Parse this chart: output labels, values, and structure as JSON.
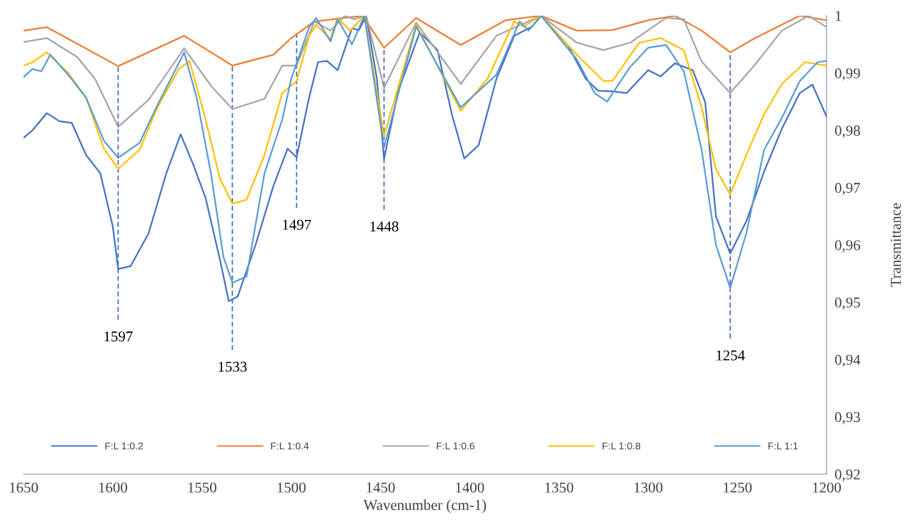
{
  "chart_data": {
    "type": "line",
    "xlabel": "Wavenumber (cm-1)",
    "ylabel": "Transmittance",
    "xlim": [
      1650,
      1200
    ],
    "xticks": [
      1650,
      1600,
      1550,
      1500,
      1450,
      1400,
      1350,
      1300,
      1250,
      1200
    ],
    "ylim": [
      0.92,
      1
    ],
    "yticks": [
      {
        "value": 0.92,
        "label": "0,92"
      },
      {
        "value": 0.93,
        "label": "0,93"
      },
      {
        "value": 0.94,
        "label": "0,94"
      },
      {
        "value": 0.95,
        "label": "0,95"
      },
      {
        "value": 0.96,
        "label": "0,96"
      },
      {
        "value": 0.97,
        "label": "0,97"
      },
      {
        "value": 0.98,
        "label": "0,98"
      },
      {
        "value": 0.99,
        "label": "0,99"
      },
      1
    ],
    "grid": false,
    "legend": "bottom",
    "marker": "none",
    "line_style": "solid",
    "annotations": [
      {
        "text": "1597",
        "x": 1597,
        "y": 0.9912
      },
      {
        "text": "1533",
        "x": 1533,
        "y": 0.9913
      },
      {
        "text": "1497",
        "x": 1497,
        "y": 0.9968
      },
      {
        "text": "1448",
        "x": 1448,
        "y": 0.9944
      },
      {
        "text": "1254",
        "x": 1254,
        "y": 0.9936
      }
    ],
    "series": [
      {
        "name": "F:L 1:0.2",
        "color": "#4472c4",
        "x": [
          1650,
          1645,
          1637,
          1630,
          1623,
          1615,
          1607,
          1600,
          1597,
          1590,
          1580,
          1570,
          1562,
          1555,
          1548,
          1540,
          1535,
          1530,
          1520,
          1510,
          1502,
          1497,
          1490,
          1485,
          1480,
          1474,
          1466,
          1462,
          1458,
          1452,
          1448,
          1440,
          1428,
          1418,
          1410,
          1403,
          1395,
          1385,
          1375,
          1365,
          1360,
          1345,
          1335,
          1328,
          1320,
          1312,
          1300,
          1293,
          1285,
          1275,
          1268,
          1262,
          1254,
          1245,
          1235,
          1225,
          1215,
          1208,
          1200
        ],
        "values": [
          0.9787,
          0.98,
          0.983,
          0.9816,
          0.9813,
          0.9757,
          0.9725,
          0.9632,
          0.9558,
          0.9563,
          0.962,
          0.9725,
          0.9793,
          0.9741,
          0.9682,
          0.9575,
          0.9502,
          0.951,
          0.96,
          0.9703,
          0.9768,
          0.9753,
          0.9857,
          0.9919,
          0.9921,
          0.9905,
          0.9978,
          0.9975,
          1.0,
          0.989,
          0.975,
          0.9869,
          0.9971,
          0.994,
          0.9828,
          0.9751,
          0.9774,
          0.989,
          0.9965,
          0.9981,
          1.0,
          0.9949,
          0.989,
          0.9869,
          0.9868,
          0.9865,
          0.9905,
          0.9894,
          0.9917,
          0.9905,
          0.9849,
          0.965,
          0.9585,
          0.9641,
          0.9728,
          0.9803,
          0.9865,
          0.988,
          0.9824
        ]
      },
      {
        "name": "F:L 1:0.4",
        "color": "#ed7d31",
        "x": [
          1650,
          1637,
          1597,
          1560,
          1533,
          1510,
          1500,
          1487,
          1460,
          1448,
          1430,
          1405,
          1380,
          1360,
          1340,
          1320,
          1300,
          1285,
          1270,
          1254,
          1240,
          1215,
          1200
        ],
        "values": [
          0.9974,
          0.998,
          0.9912,
          0.9965,
          0.9913,
          0.9932,
          0.9961,
          0.999,
          1.0,
          0.9944,
          0.9996,
          0.9949,
          0.9992,
          1.0,
          0.9974,
          0.9975,
          0.9992,
          1.0,
          0.9974,
          0.9936,
          0.9961,
          1.0,
          0.9992
        ]
      },
      {
        "name": "F:L 1:0.6",
        "color": "#a5a5a5",
        "x": [
          1650,
          1637,
          1620,
          1610,
          1597,
          1580,
          1560,
          1545,
          1533,
          1515,
          1505,
          1497,
          1487,
          1478,
          1470,
          1465,
          1458,
          1448,
          1430,
          1405,
          1385,
          1360,
          1340,
          1325,
          1310,
          1290,
          1280,
          1270,
          1254,
          1240,
          1225,
          1210,
          1200
        ],
        "values": [
          0.9954,
          0.9961,
          0.9928,
          0.989,
          0.9806,
          0.9853,
          0.9943,
          0.9878,
          0.9837,
          0.9855,
          0.9913,
          0.9913,
          0.999,
          0.9974,
          1.0,
          0.9994,
          1.0,
          0.9874,
          0.9988,
          0.9881,
          0.9965,
          1.0,
          0.9953,
          0.994,
          0.9953,
          0.9996,
          0.9994,
          0.992,
          0.9865,
          0.9915,
          0.9974,
          1.0,
          0.998
        ]
      },
      {
        "name": "F:L 1:0.8",
        "color": "#ffc000",
        "x": [
          1650,
          1645,
          1637,
          1625,
          1615,
          1605,
          1597,
          1585,
          1575,
          1563,
          1557,
          1548,
          1540,
          1533,
          1525,
          1515,
          1505,
          1497,
          1490,
          1486,
          1478,
          1474,
          1467,
          1459,
          1448,
          1430,
          1405,
          1390,
          1375,
          1370,
          1360,
          1340,
          1325,
          1320,
          1305,
          1293,
          1280,
          1270,
          1262,
          1254,
          1245,
          1235,
          1225,
          1212,
          1200
        ],
        "values": [
          0.9913,
          0.9919,
          0.9936,
          0.99,
          0.9857,
          0.9768,
          0.9733,
          0.9766,
          0.984,
          0.9907,
          0.9921,
          0.9819,
          0.9716,
          0.9672,
          0.9679,
          0.9757,
          0.9865,
          0.9886,
          0.9965,
          0.9984,
          0.9959,
          0.9996,
          0.9974,
          1.0,
          0.979,
          0.9984,
          0.9834,
          0.989,
          0.999,
          0.9981,
          1.0,
          0.9932,
          0.9886,
          0.9886,
          0.9953,
          0.9961,
          0.994,
          0.984,
          0.9732,
          0.9688,
          0.9757,
          0.9828,
          0.9881,
          0.9919,
          0.9913
        ]
      },
      {
        "name": "F:L 1:1",
        "color": "#5b9bd5",
        "x": [
          1650,
          1645,
          1640,
          1635,
          1625,
          1615,
          1605,
          1597,
          1585,
          1575,
          1565,
          1560,
          1553,
          1545,
          1538,
          1533,
          1525,
          1515,
          1505,
          1500,
          1490,
          1486,
          1478,
          1474,
          1466,
          1459,
          1448,
          1430,
          1405,
          1385,
          1372,
          1367,
          1360,
          1340,
          1330,
          1323,
          1310,
          1300,
          1290,
          1280,
          1270,
          1262,
          1254,
          1245,
          1235,
          1225,
          1215,
          1205,
          1200
        ],
        "values": [
          0.9893,
          0.9907,
          0.9903,
          0.9932,
          0.9897,
          0.9857,
          0.9782,
          0.9752,
          0.9778,
          0.9844,
          0.9905,
          0.9936,
          0.9857,
          0.9725,
          0.9579,
          0.9534,
          0.9545,
          0.9725,
          0.9819,
          0.989,
          0.998,
          0.9996,
          0.9955,
          0.9994,
          0.995,
          1.0,
          0.977,
          0.9981,
          0.984,
          0.9897,
          0.999,
          0.9974,
          1.0,
          0.9924,
          0.9865,
          0.985,
          0.9911,
          0.9944,
          0.9949,
          0.9903,
          0.9766,
          0.96,
          0.9525,
          0.962,
          0.9766,
          0.9822,
          0.9886,
          0.9919,
          0.9921
        ]
      }
    ]
  }
}
